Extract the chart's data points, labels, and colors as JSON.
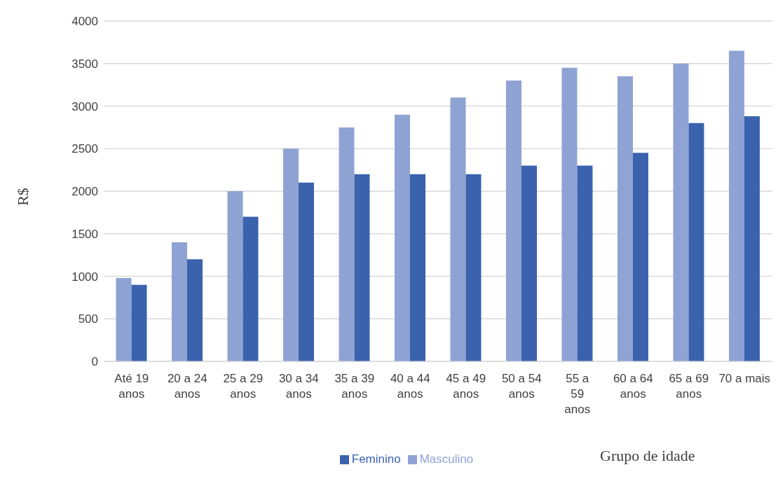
{
  "chart_data": {
    "type": "bar",
    "xlabel": "Grupo de idade",
    "ylabel": "R$",
    "categories": [
      "Até 19 anos",
      "20 a 24 anos",
      "25 a 29 anos",
      "30 a 34 anos",
      "35 a 39 anos",
      "40 a 44 anos",
      "45 a 49 anos",
      "50 a 54 anos",
      "55 a 59 anos",
      "60 a 64 anos",
      "65 a 69 anos",
      "70 a mais"
    ],
    "series": [
      {
        "name": "Masculino",
        "color": "#8fa2d4",
        "values": [
          980,
          1400,
          2000,
          2500,
          2750,
          2900,
          3100,
          3300,
          3450,
          3350,
          3500,
          3650
        ]
      },
      {
        "name": "Feminino",
        "color": "#3a62ad",
        "values": [
          900,
          1200,
          1700,
          2100,
          2200,
          2200,
          2200,
          2300,
          2300,
          2450,
          2800,
          2880
        ]
      }
    ],
    "ylim": [
      0,
      4000
    ],
    "yticks": [
      0,
      500,
      1000,
      1500,
      2000,
      2500,
      3000,
      3500,
      4000
    ],
    "grid": "y",
    "legend": "bottom"
  }
}
